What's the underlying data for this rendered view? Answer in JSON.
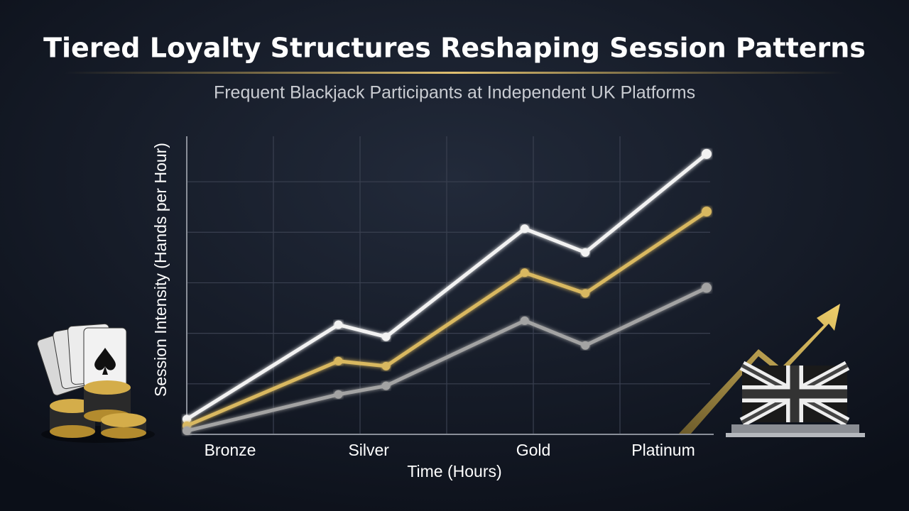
{
  "chart_data": {
    "type": "line",
    "title": "Tiered Loyalty Structures Reshaping Session Patterns",
    "subtitle": "Frequent Blackjack Participants at Independent UK Platforms",
    "x_label": "Time (Hours)",
    "y_label": "Session Intensity (Hands per Hour)",
    "x": [
      0,
      1.75,
      2.3,
      3.9,
      4.6,
      6.0
    ],
    "xlim": [
      0,
      6
    ],
    "ylim": [
      0,
      5.9
    ],
    "xticks": [
      {
        "value": 0.5,
        "label": "Bronze"
      },
      {
        "value": 2.1,
        "label": "Silver"
      },
      {
        "value": 4.0,
        "label": "Gold"
      },
      {
        "value": 5.5,
        "label": "Platinum"
      }
    ],
    "xgrid": [
      1,
      2,
      3,
      4,
      5
    ],
    "ygrid": [
      1,
      2,
      3,
      4,
      5
    ],
    "grid": true,
    "series": [
      {
        "color": "#f2f2f2",
        "values": [
          0.3,
          2.17,
          1.93,
          4.07,
          3.6,
          5.55
        ]
      },
      {
        "color": "#d9b860",
        "values": [
          0.17,
          1.45,
          1.35,
          3.2,
          2.79,
          4.41
        ]
      },
      {
        "color": "#a3a3a3",
        "values": [
          0.07,
          0.79,
          0.96,
          2.25,
          1.76,
          2.9
        ]
      }
    ]
  }
}
